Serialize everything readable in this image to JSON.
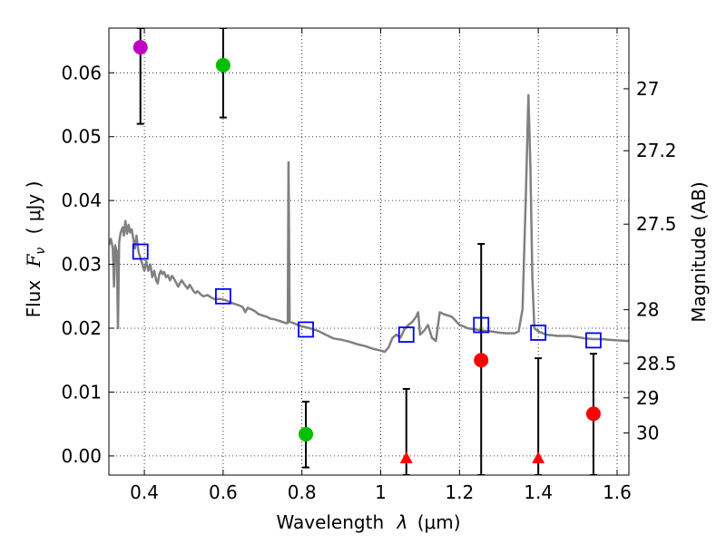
{
  "chart_data": {
    "type": "scatter",
    "xlabel_prefix": "Wavelength",
    "xlabel_symbol": "λ",
    "xlabel_unit": "(μm)",
    "ylabel_prefix": "Flux",
    "ylabel_symbol": "F",
    "ylabel_subscript": "ν",
    "ylabel_unit": "( μJy )",
    "y2label": "Magnitude (AB)",
    "xlim": [
      0.31,
      1.63
    ],
    "ylim": [
      -0.003,
      0.067
    ],
    "xticks": [
      0.4,
      0.6,
      0.8,
      1.0,
      1.2,
      1.4,
      1.6
    ],
    "xtick_labels": [
      "0.4",
      "0.6",
      "0.8",
      "1",
      "1.2",
      "1.4",
      "1.6"
    ],
    "yticks": [
      0.0,
      0.01,
      0.02,
      0.03,
      0.04,
      0.05,
      0.06
    ],
    "ytick_labels": [
      "0.00",
      "0.01",
      "0.02",
      "0.03",
      "0.04",
      "0.05",
      "0.06"
    ],
    "y2ticks": [
      {
        "label": "27",
        "flux": 0.0575
      },
      {
        "label": "27.2",
        "flux": 0.0478
      },
      {
        "label": "27.5",
        "flux": 0.0363
      },
      {
        "label": "28",
        "flux": 0.0229
      },
      {
        "label": "28.5",
        "flux": 0.0145
      },
      {
        "label": "29",
        "flux": 0.0091
      },
      {
        "label": "30",
        "flux": 0.0036
      }
    ],
    "grid": true,
    "colors": {
      "spectrum": "#808080",
      "model_points": "#0000ff",
      "errorbar": "#000000",
      "magenta": "#bf00bf",
      "green": "#00bf00",
      "red": "#ff0000"
    },
    "spectrum": [
      [
        0.31,
        0.033
      ],
      [
        0.315,
        0.034
      ],
      [
        0.32,
        0.0325
      ],
      [
        0.323,
        0.0265
      ],
      [
        0.326,
        0.033
      ],
      [
        0.33,
        0.032
      ],
      [
        0.333,
        0.02
      ],
      [
        0.336,
        0.0335
      ],
      [
        0.34,
        0.035
      ],
      [
        0.345,
        0.0358
      ],
      [
        0.348,
        0.0345
      ],
      [
        0.352,
        0.0368
      ],
      [
        0.356,
        0.0348
      ],
      [
        0.36,
        0.0362
      ],
      [
        0.364,
        0.035
      ],
      [
        0.368,
        0.0355
      ],
      [
        0.372,
        0.034
      ],
      [
        0.376,
        0.0325
      ],
      [
        0.38,
        0.0345
      ],
      [
        0.385,
        0.032
      ],
      [
        0.39,
        0.031
      ],
      [
        0.395,
        0.03
      ],
      [
        0.4,
        0.029
      ],
      [
        0.405,
        0.0305
      ],
      [
        0.41,
        0.029
      ],
      [
        0.415,
        0.03
      ],
      [
        0.42,
        0.028
      ],
      [
        0.425,
        0.029
      ],
      [
        0.43,
        0.0275
      ],
      [
        0.434,
        0.027
      ],
      [
        0.438,
        0.0285
      ],
      [
        0.442,
        0.029
      ],
      [
        0.446,
        0.0285
      ],
      [
        0.45,
        0.0288
      ],
      [
        0.455,
        0.028
      ],
      [
        0.46,
        0.0283
      ],
      [
        0.465,
        0.0275
      ],
      [
        0.47,
        0.0282
      ],
      [
        0.475,
        0.0278
      ],
      [
        0.48,
        0.0272
      ],
      [
        0.486,
        0.0265
      ],
      [
        0.49,
        0.027
      ],
      [
        0.495,
        0.0275
      ],
      [
        0.5,
        0.027
      ],
      [
        0.505,
        0.0266
      ],
      [
        0.51,
        0.0262
      ],
      [
        0.515,
        0.0268
      ],
      [
        0.52,
        0.0263
      ],
      [
        0.525,
        0.0258
      ],
      [
        0.53,
        0.0255
      ],
      [
        0.535,
        0.0258
      ],
      [
        0.54,
        0.0255
      ],
      [
        0.545,
        0.0252
      ],
      [
        0.55,
        0.025
      ],
      [
        0.56,
        0.0252
      ],
      [
        0.57,
        0.0248
      ],
      [
        0.58,
        0.0245
      ],
      [
        0.59,
        0.0246
      ],
      [
        0.6,
        0.0245
      ],
      [
        0.61,
        0.0243
      ],
      [
        0.62,
        0.024
      ],
      [
        0.63,
        0.0238
      ],
      [
        0.64,
        0.0236
      ],
      [
        0.65,
        0.0233
      ],
      [
        0.656,
        0.0225
      ],
      [
        0.662,
        0.0232
      ],
      [
        0.67,
        0.023
      ],
      [
        0.68,
        0.0227
      ],
      [
        0.69,
        0.0222
      ],
      [
        0.7,
        0.022
      ],
      [
        0.71,
        0.0218
      ],
      [
        0.72,
        0.0215
      ],
      [
        0.73,
        0.0214
      ],
      [
        0.74,
        0.0212
      ],
      [
        0.75,
        0.021
      ],
      [
        0.76,
        0.0208
      ],
      [
        0.764,
        0.0208
      ],
      [
        0.766,
        0.046
      ],
      [
        0.769,
        0.021
      ],
      [
        0.775,
        0.0209
      ],
      [
        0.79,
        0.0205
      ],
      [
        0.8,
        0.0203
      ],
      [
        0.82,
        0.02
      ],
      [
        0.84,
        0.0196
      ],
      [
        0.86,
        0.019
      ],
      [
        0.88,
        0.0184
      ],
      [
        0.9,
        0.0182
      ],
      [
        0.92,
        0.0179
      ],
      [
        0.94,
        0.0175
      ],
      [
        0.96,
        0.0172
      ],
      [
        0.98,
        0.0168
      ],
      [
        1.0,
        0.0165
      ],
      [
        1.01,
        0.0163
      ],
      [
        1.02,
        0.017
      ],
      [
        1.03,
        0.0185
      ],
      [
        1.04,
        0.019
      ],
      [
        1.05,
        0.0185
      ],
      [
        1.06,
        0.0198
      ],
      [
        1.07,
        0.0205
      ],
      [
        1.08,
        0.021
      ],
      [
        1.09,
        0.0218
      ],
      [
        1.095,
        0.0225
      ],
      [
        1.1,
        0.019
      ],
      [
        1.11,
        0.0196
      ],
      [
        1.12,
        0.0205
      ],
      [
        1.13,
        0.0185
      ],
      [
        1.14,
        0.018
      ],
      [
        1.15,
        0.0225
      ],
      [
        1.16,
        0.0222
      ],
      [
        1.18,
        0.0218
      ],
      [
        1.19,
        0.0212
      ],
      [
        1.2,
        0.0205
      ],
      [
        1.21,
        0.0203
      ],
      [
        1.22,
        0.02
      ],
      [
        1.24,
        0.0198
      ],
      [
        1.26,
        0.0196
      ],
      [
        1.28,
        0.0195
      ],
      [
        1.3,
        0.0193
      ],
      [
        1.32,
        0.0192
      ],
      [
        1.34,
        0.0192
      ],
      [
        1.35,
        0.0195
      ],
      [
        1.36,
        0.023
      ],
      [
        1.368,
        0.04
      ],
      [
        1.375,
        0.0565
      ],
      [
        1.38,
        0.045
      ],
      [
        1.385,
        0.028
      ],
      [
        1.39,
        0.02
      ],
      [
        1.4,
        0.0195
      ],
      [
        1.42,
        0.019
      ],
      [
        1.45,
        0.0188
      ],
      [
        1.48,
        0.0188
      ],
      [
        1.5,
        0.0186
      ],
      [
        1.52,
        0.0184
      ],
      [
        1.54,
        0.0183
      ],
      [
        1.56,
        0.0183
      ],
      [
        1.58,
        0.0182
      ],
      [
        1.6,
        0.0181
      ],
      [
        1.63,
        0.018
      ]
    ],
    "model_points": [
      {
        "x": 0.39,
        "y": 0.032
      },
      {
        "x": 0.6,
        "y": 0.025
      },
      {
        "x": 0.81,
        "y": 0.0198
      },
      {
        "x": 1.065,
        "y": 0.019
      },
      {
        "x": 1.255,
        "y": 0.0205
      },
      {
        "x": 1.4,
        "y": 0.0193
      },
      {
        "x": 1.54,
        "y": 0.0181
      }
    ],
    "observations": [
      {
        "x": 0.39,
        "y": 0.064,
        "ylow": 0.052,
        "yhigh": 0.067,
        "marker": "circle",
        "color": "magenta"
      },
      {
        "x": 0.6,
        "y": 0.0612,
        "ylow": 0.053,
        "yhigh": 0.067,
        "marker": "circle",
        "color": "green"
      },
      {
        "x": 0.81,
        "y": 0.0034,
        "ylow": -0.0018,
        "yhigh": 0.0085,
        "marker": "circle",
        "color": "green"
      },
      {
        "x": 1.065,
        "y": -0.0003,
        "ylow": -0.003,
        "yhigh": 0.0105,
        "marker": "triangle",
        "color": "red"
      },
      {
        "x": 1.255,
        "y": 0.015,
        "ylow": -0.003,
        "yhigh": 0.0332,
        "marker": "circle",
        "color": "red"
      },
      {
        "x": 1.4,
        "y": -0.0003,
        "ylow": -0.003,
        "yhigh": 0.0153,
        "marker": "triangle",
        "color": "red"
      },
      {
        "x": 1.54,
        "y": 0.0066,
        "ylow": -0.003,
        "yhigh": 0.016,
        "marker": "circle",
        "color": "red"
      }
    ]
  }
}
